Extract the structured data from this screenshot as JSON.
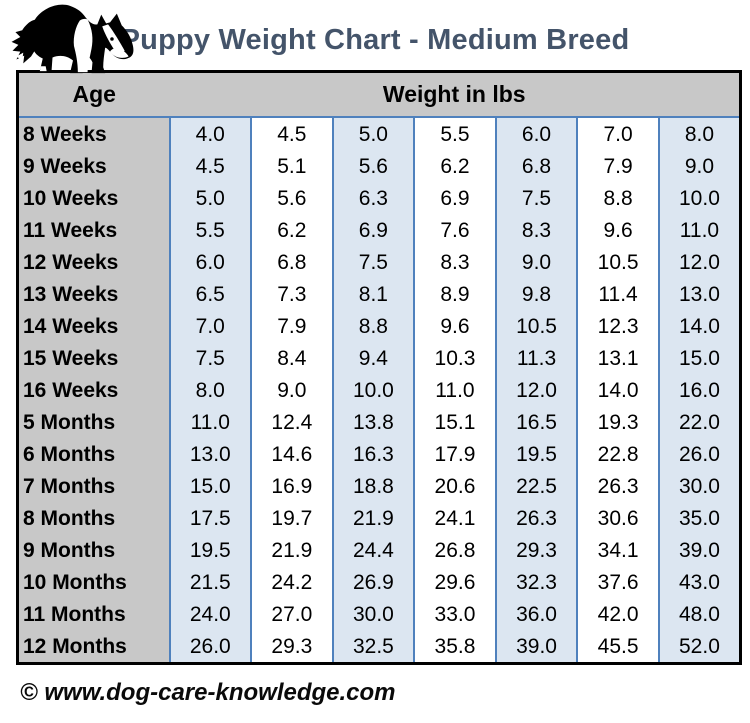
{
  "header": {
    "title": "Puppy Weight Chart - Medium Breed"
  },
  "icons": {
    "dog_logo": "border-collie-dog-icon"
  },
  "chart_data": {
    "type": "table",
    "title": "Puppy Weight Chart - Medium Breed",
    "age_header": "Age",
    "weight_header": "Weight in lbs",
    "rows": [
      {
        "age": "8 Weeks",
        "weights": [
          "4.0",
          "4.5",
          "5.0",
          "5.5",
          "6.0",
          "7.0",
          "8.0"
        ]
      },
      {
        "age": "9 Weeks",
        "weights": [
          "4.5",
          "5.1",
          "5.6",
          "6.2",
          "6.8",
          "7.9",
          "9.0"
        ]
      },
      {
        "age": "10 Weeks",
        "weights": [
          "5.0",
          "5.6",
          "6.3",
          "6.9",
          "7.5",
          "8.8",
          "10.0"
        ]
      },
      {
        "age": "11 Weeks",
        "weights": [
          "5.5",
          "6.2",
          "6.9",
          "7.6",
          "8.3",
          "9.6",
          "11.0"
        ]
      },
      {
        "age": "12 Weeks",
        "weights": [
          "6.0",
          "6.8",
          "7.5",
          "8.3",
          "9.0",
          "10.5",
          "12.0"
        ]
      },
      {
        "age": "13 Weeks",
        "weights": [
          "6.5",
          "7.3",
          "8.1",
          "8.9",
          "9.8",
          "11.4",
          "13.0"
        ]
      },
      {
        "age": "14 Weeks",
        "weights": [
          "7.0",
          "7.9",
          "8.8",
          "9.6",
          "10.5",
          "12.3",
          "14.0"
        ]
      },
      {
        "age": "15 Weeks",
        "weights": [
          "7.5",
          "8.4",
          "9.4",
          "10.3",
          "11.3",
          "13.1",
          "15.0"
        ]
      },
      {
        "age": "16 Weeks",
        "weights": [
          "8.0",
          "9.0",
          "10.0",
          "11.0",
          "12.0",
          "14.0",
          "16.0"
        ]
      },
      {
        "age": "5 Months",
        "weights": [
          "11.0",
          "12.4",
          "13.8",
          "15.1",
          "16.5",
          "19.3",
          "22.0"
        ]
      },
      {
        "age": "6 Months",
        "weights": [
          "13.0",
          "14.6",
          "16.3",
          "17.9",
          "19.5",
          "22.8",
          "26.0"
        ]
      },
      {
        "age": "7 Months",
        "weights": [
          "15.0",
          "16.9",
          "18.8",
          "20.6",
          "22.5",
          "26.3",
          "30.0"
        ]
      },
      {
        "age": "8 Months",
        "weights": [
          "17.5",
          "19.7",
          "21.9",
          "24.1",
          "26.3",
          "30.6",
          "35.0"
        ]
      },
      {
        "age": "9 Months",
        "weights": [
          "19.5",
          "21.9",
          "24.4",
          "26.8",
          "29.3",
          "34.1",
          "39.0"
        ]
      },
      {
        "age": "10 Months",
        "weights": [
          "21.5",
          "24.2",
          "26.9",
          "29.6",
          "32.3",
          "37.6",
          "43.0"
        ]
      },
      {
        "age": "11 Months",
        "weights": [
          "24.0",
          "27.0",
          "30.0",
          "33.0",
          "36.0",
          "42.0",
          "48.0"
        ]
      },
      {
        "age": "12 Months",
        "weights": [
          "26.0",
          "29.3",
          "32.5",
          "35.8",
          "39.0",
          "45.5",
          "52.0"
        ]
      }
    ]
  },
  "footer": {
    "copyright": "© www.dog-care-knowledge.com"
  },
  "colors": {
    "title_text": "#44546a",
    "header_bg": "#c8c8c8",
    "age_column_bg": "#c8c8c8",
    "stripe_blue": "#dce6f1",
    "stripe_white": "#ffffff",
    "grid_blue": "#4f81bd",
    "outer_border": "#000000",
    "body_text": "#000000"
  }
}
